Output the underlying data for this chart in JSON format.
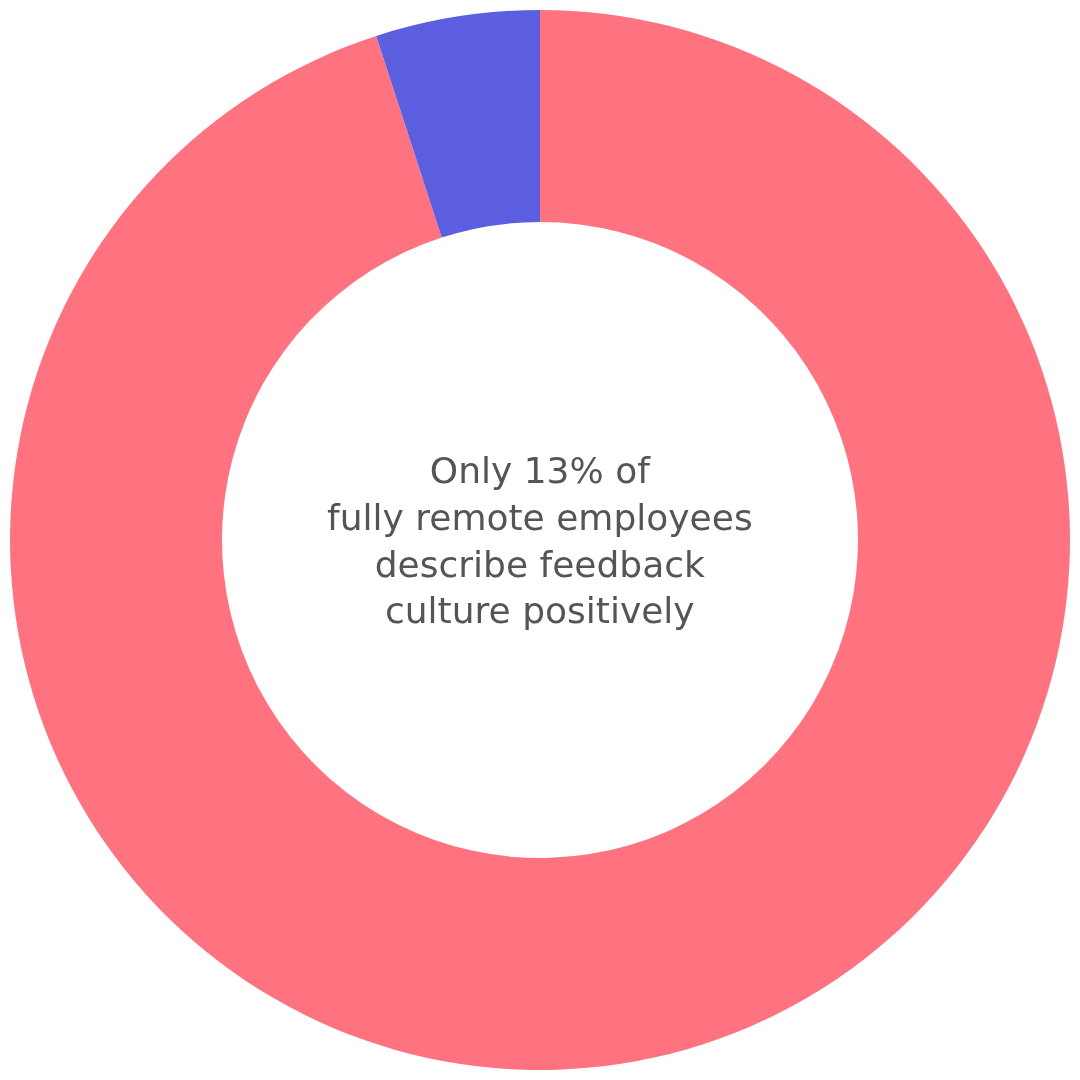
{
  "chart_data": {
    "type": "donut",
    "categories": [
      null,
      null
    ],
    "values": [
      95,
      5
    ],
    "colors": [
      "#ff7380",
      "#5c5ee0"
    ],
    "annotations": [
      "Only 13% of\nfully remote employees\ndescribe feedback\nculture positively"
    ],
    "legend": false
  }
}
